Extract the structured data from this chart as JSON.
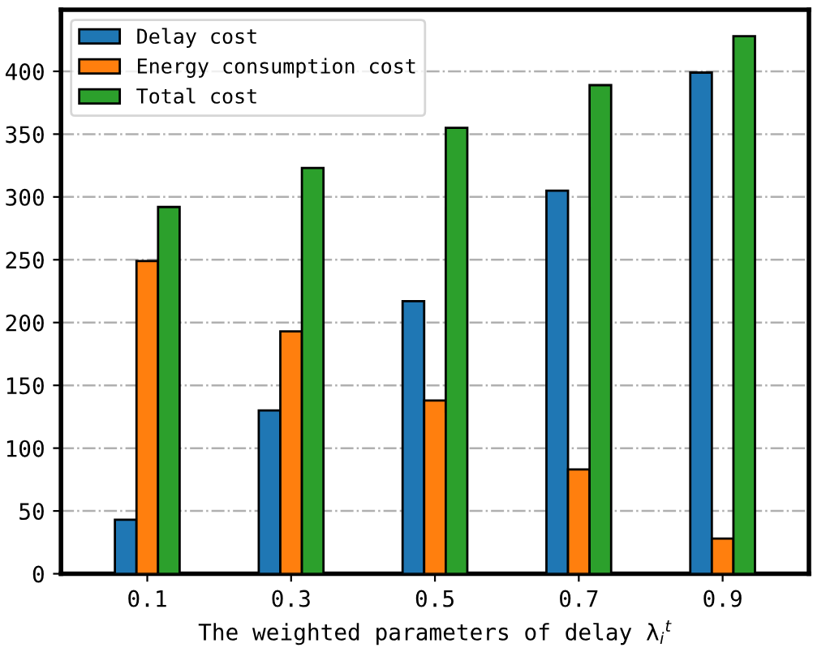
{
  "chart_data": {
    "type": "bar",
    "xlabel": "The weighted parameters of delay λ$_{i}$$^{t}$",
    "categories": [
      "0.1",
      "0.3",
      "0.5",
      "0.7",
      "0.9"
    ],
    "series": [
      {
        "name": "Delay cost",
        "color": "#1f77b4",
        "values": [
          43,
          130,
          217,
          305,
          399
        ]
      },
      {
        "name": "Energy consumption cost",
        "color": "#ff7f0e",
        "values": [
          249,
          193,
          138,
          83,
          28
        ]
      },
      {
        "name": "Total cost",
        "color": "#2ca02c",
        "values": [
          292,
          323,
          355,
          389,
          428
        ]
      }
    ],
    "ylim": [
      0,
      449
    ],
    "yticks": [
      0,
      50,
      100,
      150,
      200,
      250,
      300,
      350,
      400
    ],
    "grid": "y",
    "legend": "top left"
  }
}
